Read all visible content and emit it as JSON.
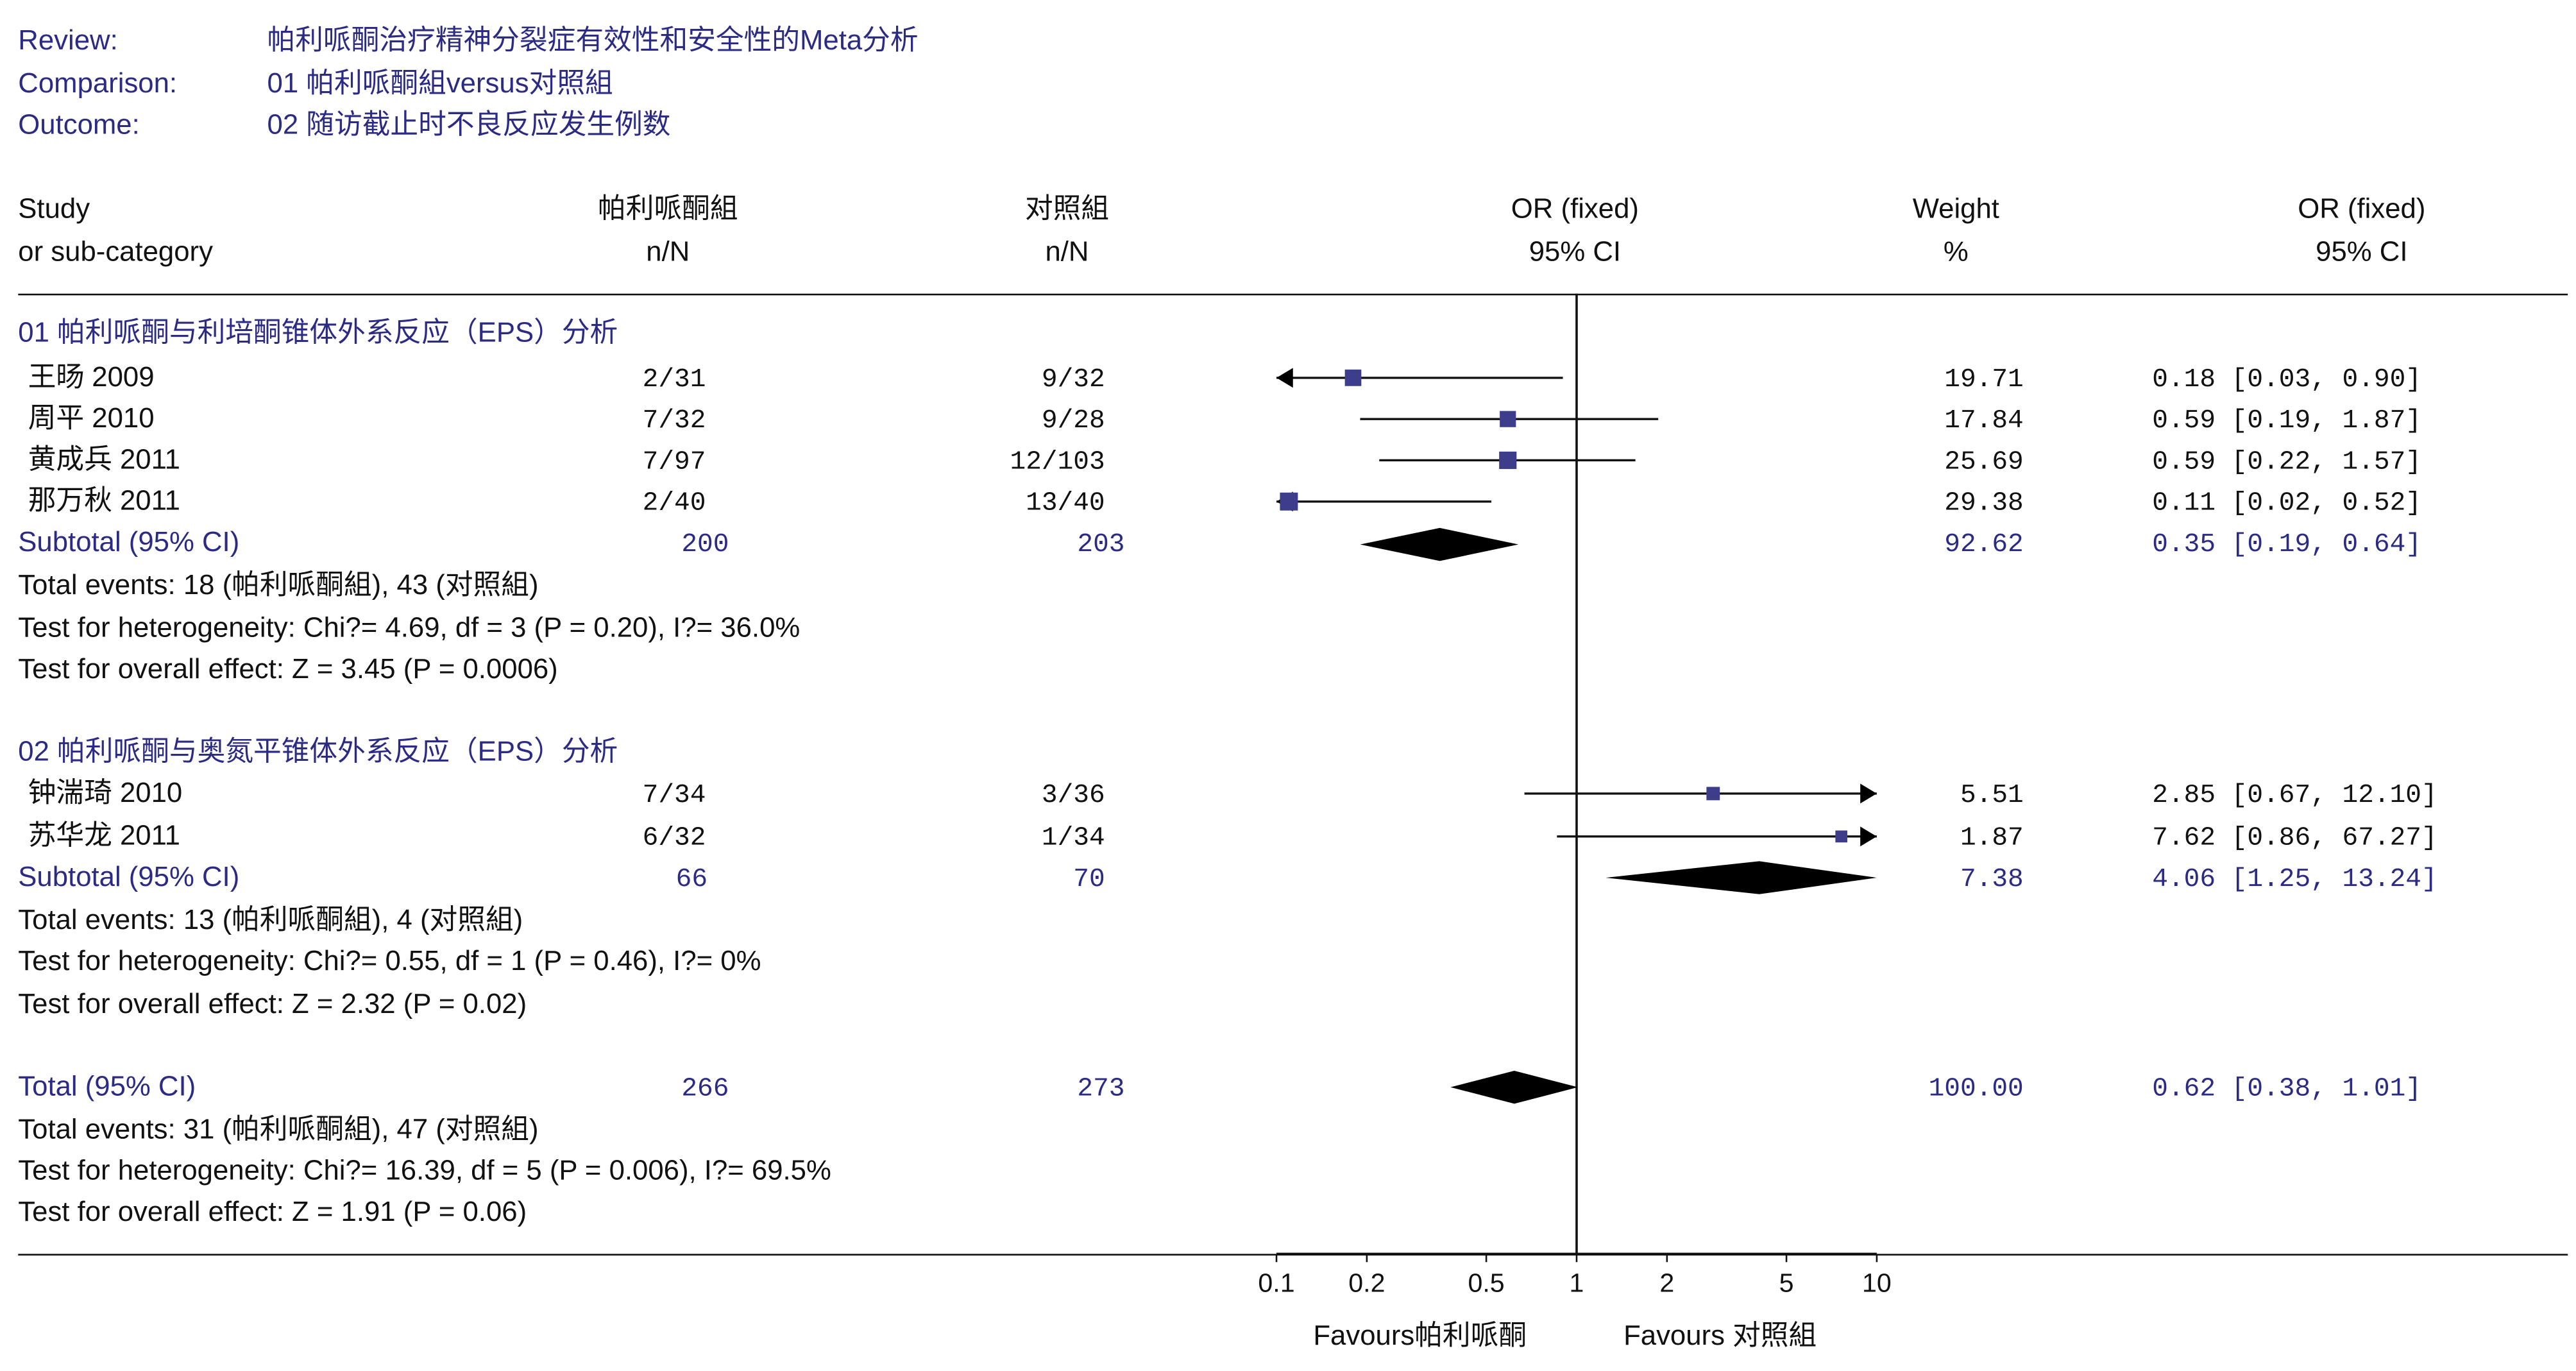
{
  "header": {
    "review_label": "Review:",
    "review": "帕利哌酮治疗精神分裂症有效性和安全性的Meta分析",
    "comparison_label": "Comparison:",
    "comparison": "01 帕利哌酮組versus对照組",
    "outcome_label": "Outcome:",
    "outcome": "02 随访截止时不良反应发生例数"
  },
  "columns": {
    "study_1": "Study",
    "study_2": "or sub-category",
    "treat_1": "帕利哌酮組",
    "treat_2": "n/N",
    "ctrl_1": "对照組",
    "ctrl_2": "n/N",
    "or_plot_1": "OR (fixed)",
    "or_plot_2": "95% CI",
    "weight_1": "Weight",
    "weight_2": "%",
    "or_text_1": "OR (fixed)",
    "or_text_2": "95% CI"
  },
  "axis": {
    "favours_left": "Favours帕利哌酮",
    "favours_right": "Favours 对照組"
  },
  "chart_data": {
    "type": "forest",
    "scale": "log",
    "xlim": [
      0.1,
      10
    ],
    "ticks": [
      "0.1",
      "0.2",
      "0.5",
      "1",
      "2",
      "5",
      "10"
    ],
    "groups": [
      {
        "title": "01 帕利哌酮与利培酮锥体外系反应（EPS）分析",
        "studies": [
          {
            "name": "王旸 2009",
            "treat": "2/31",
            "ctrl": "9/32",
            "weight": "19.71",
            "or_text": "0.18 [0.03, 0.90]",
            "or": 0.18,
            "lo": 0.03,
            "hi": 0.9
          },
          {
            "name": "周平 2010",
            "treat": "7/32",
            "ctrl": "9/28",
            "weight": "17.84",
            "or_text": "0.59 [0.19, 1.87]",
            "or": 0.59,
            "lo": 0.19,
            "hi": 1.87
          },
          {
            "name": "黄成兵 2011",
            "treat": "7/97",
            "ctrl": "12/103",
            "weight": "25.69",
            "or_text": "0.59 [0.22, 1.57]",
            "or": 0.59,
            "lo": 0.22,
            "hi": 1.57
          },
          {
            "name": "那万秋 2011",
            "treat": "2/40",
            "ctrl": "13/40",
            "weight": "29.38",
            "or_text": "0.11 [0.02, 0.52]",
            "or": 0.11,
            "lo": 0.02,
            "hi": 0.52
          }
        ],
        "subtotal": {
          "label": "Subtotal (95% CI)",
          "treat": "200",
          "ctrl": "203",
          "weight": "92.62",
          "or_text": "0.35 [0.19, 0.64]",
          "or": 0.35,
          "lo": 0.19,
          "hi": 0.64
        },
        "stats": [
          "Total events: 18 (帕利哌酮組), 43 (对照組)",
          "Test for heterogeneity: Chi?= 4.69, df = 3 (P = 0.20), I?= 36.0%",
          "Test for overall effect: Z = 3.45 (P = 0.0006)"
        ]
      },
      {
        "title": "02 帕利哌酮与奥氮平锥体外系反应（EPS）分析",
        "studies": [
          {
            "name": "钟湍琦 2010",
            "treat": "7/34",
            "ctrl": "3/36",
            "weight": "5.51",
            "or_text": "2.85 [0.67, 12.10]",
            "or": 2.85,
            "lo": 0.67,
            "hi": 12.1
          },
          {
            "name": "苏华龙 2011",
            "treat": "6/32",
            "ctrl": "1/34",
            "weight": "1.87",
            "or_text": "7.62 [0.86, 67.27]",
            "or": 7.62,
            "lo": 0.86,
            "hi": 67.27
          }
        ],
        "subtotal": {
          "label": "Subtotal (95% CI)",
          "treat": "66",
          "ctrl": "70",
          "weight": "7.38",
          "or_text": "4.06 [1.25, 13.24]",
          "or": 4.06,
          "lo": 1.25,
          "hi": 13.24
        },
        "stats": [
          "Total events: 13 (帕利哌酮組), 4 (对照組)",
          "Test for heterogeneity: Chi?= 0.55, df = 1 (P = 0.46), I?= 0%",
          "Test for overall effect: Z = 2.32 (P = 0.02)"
        ]
      }
    ],
    "total": {
      "label": "Total (95% CI)",
      "treat": "266",
      "ctrl": "273",
      "weight": "100.00",
      "or_text": "0.62 [0.38, 1.01]",
      "or": 0.62,
      "lo": 0.38,
      "hi": 1.01
    },
    "total_stats": [
      "Total events: 31 (帕利哌酮組), 47 (对照組)",
      "Test for heterogeneity: Chi?= 16.39, df = 5 (P = 0.006), I?= 69.5%",
      "Test for overall effect: Z = 1.91 (P = 0.06)"
    ],
    "colors": {
      "marker": "#3d3d8c",
      "diamond": "#000000",
      "text_accent": "#2b2b86"
    }
  }
}
